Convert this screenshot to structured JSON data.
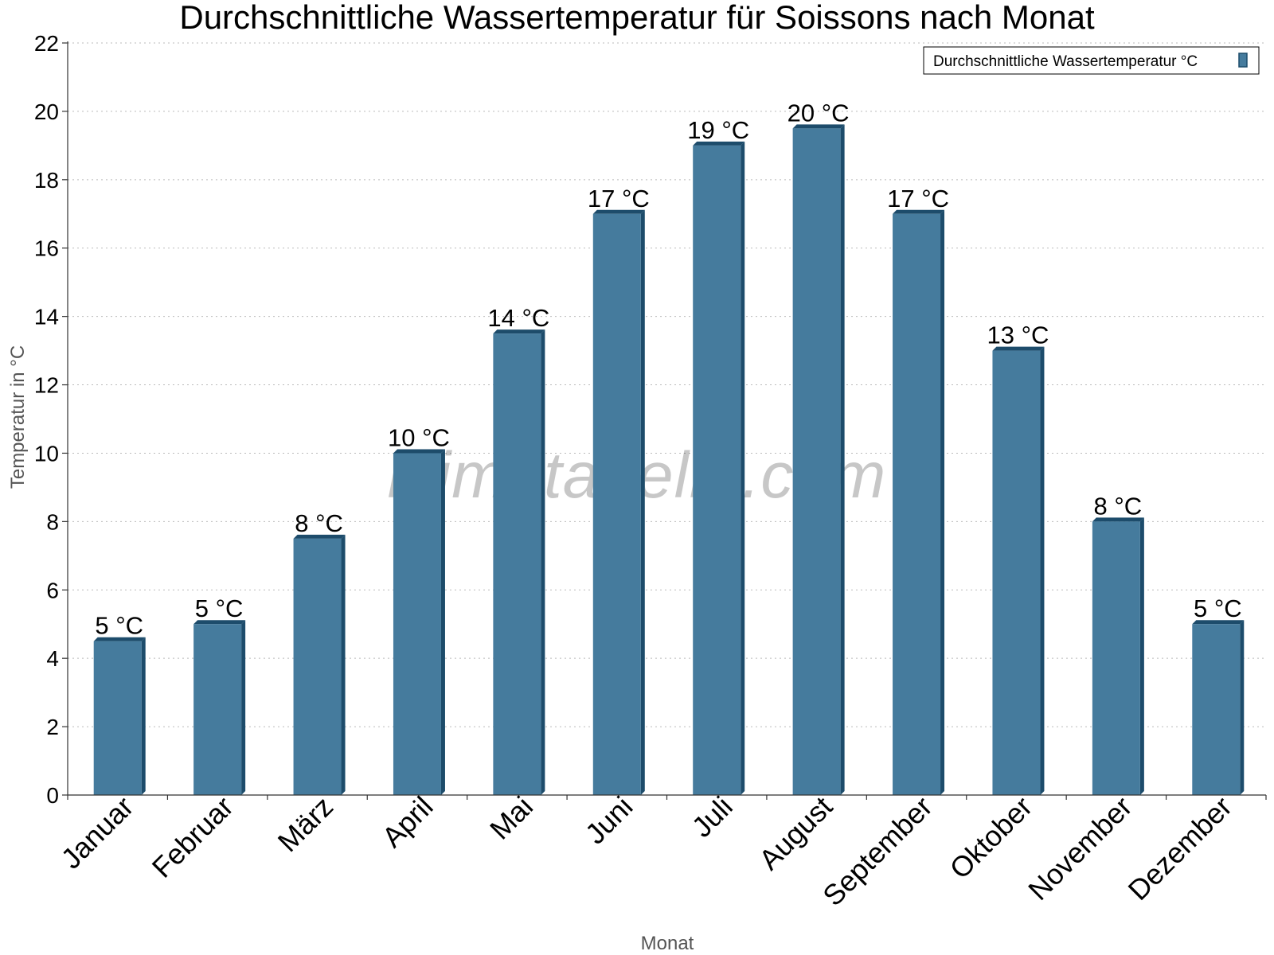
{
  "chart_data": {
    "type": "bar",
    "title": "Durchschnittliche Wassertemperatur für Soissons nach Monat",
    "xlabel": "Monat",
    "ylabel": "Temperatur in °C",
    "ylim": [
      0,
      22
    ],
    "yticks": [
      0,
      2,
      4,
      6,
      8,
      10,
      12,
      14,
      16,
      18,
      20,
      22
    ],
    "grid": true,
    "legend_position": "top-right",
    "categories": [
      "Januar",
      "Februar",
      "März",
      "April",
      "Mai",
      "Juni",
      "Juli",
      "August",
      "September",
      "Oktober",
      "November",
      "Dezember"
    ],
    "series": [
      {
        "name": "Durchschnittliche Wassertemperatur °C",
        "color": "#457b9d",
        "values": [
          4.5,
          5,
          7.5,
          10,
          13.5,
          17,
          19,
          19.5,
          17,
          13,
          8,
          5
        ],
        "labels": [
          "5 °C",
          "5 °C",
          "8 °C",
          "10 °C",
          "14 °C",
          "17 °C",
          "19 °C",
          "20 °C",
          "17 °C",
          "13 °C",
          "8 °C",
          "5 °C"
        ]
      }
    ]
  },
  "watermark": "klimatabelle.com",
  "colors": {
    "bar_face": "#457b9d",
    "bar_side": "#1d4c6b"
  }
}
